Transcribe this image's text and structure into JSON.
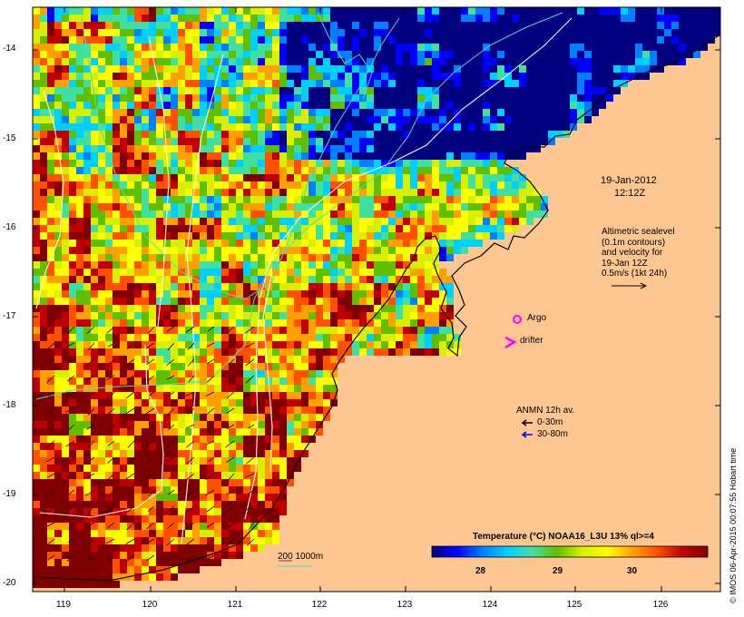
{
  "title": {
    "date": "19-Jan-2012",
    "time": "12:12Z"
  },
  "altimetry_legend": {
    "lines": [
      "Altimetric sealevel",
      "(0.1m contours)",
      "and velocity for",
      "19-Jan 12Z",
      "0.5m/s (1kt 24h)"
    ]
  },
  "markers_legend": {
    "argo_label": "Argo",
    "drifter_label": "drifter"
  },
  "anmn_legend": {
    "title": "ANMN 12h av.",
    "shallow_label": "0-30m",
    "deep_label": "30-80m"
  },
  "depth_legend": {
    "label": "200  1000m"
  },
  "colorbar": {
    "title": "Temperature (°C) NOAA16_L3U 13% ql>=4",
    "min": 27.0,
    "max": 31.2,
    "ticks": [
      "28",
      "29",
      "30"
    ],
    "tick_values": [
      28,
      29,
      30
    ]
  },
  "axes": {
    "lon_ticks": [
      "119",
      "120",
      "121",
      "122",
      "123",
      "124",
      "125",
      "126"
    ],
    "lat_ticks": [
      "-14",
      "-15",
      "-16",
      "-17",
      "-18",
      "-19",
      "-20"
    ],
    "lon_range": [
      118.6,
      126.7
    ],
    "lat_range": [
      -20.1,
      -13.6
    ]
  },
  "credit": "© IMOS 06-Apr-2015 00:07:55 Hobart time",
  "colors": {
    "land": "#fec792",
    "colorbar_stops": [
      "#000080",
      "#0000ff",
      "#0080ff",
      "#00d0ff",
      "#40e0a0",
      "#60c000",
      "#d8f000",
      "#ffff00",
      "#ffa000",
      "#ff5000",
      "#c00000",
      "#800000"
    ],
    "argo": "#ff00ff",
    "drifter": "#ff00ff",
    "anmn_shallow": "#000000",
    "anmn_deep": "#0000ff",
    "depth_contour": "#40e0d0"
  }
}
